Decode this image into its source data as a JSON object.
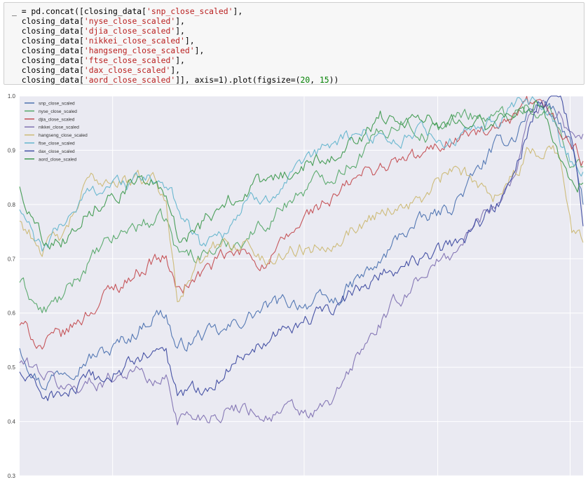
{
  "code_cell": {
    "lines": [
      [
        {
          "t": "_ = pd.concat([closing_data["
        },
        {
          "s": "'snp_close_scaled'"
        },
        {
          "t": "],"
        }
      ],
      [
        {
          "t": "  closing_data["
        },
        {
          "s": "'nyse_close_scaled'"
        },
        {
          "t": "],"
        }
      ],
      [
        {
          "t": "  closing_data["
        },
        {
          "s": "'djia_close_scaled'"
        },
        {
          "t": "],"
        }
      ],
      [
        {
          "t": "  closing_data["
        },
        {
          "s": "'nikkei_close_scaled'"
        },
        {
          "t": "],"
        }
      ],
      [
        {
          "t": "  closing_data["
        },
        {
          "s": "'hangseng_close_scaled'"
        },
        {
          "t": "],"
        }
      ],
      [
        {
          "t": "  closing_data["
        },
        {
          "s": "'ftse_close_scaled'"
        },
        {
          "t": "],"
        }
      ],
      [
        {
          "t": "  closing_data["
        },
        {
          "s": "'dax_close_scaled'"
        },
        {
          "t": "],"
        }
      ],
      [
        {
          "t": "  closing_data["
        },
        {
          "s": "'aord_close_scaled'"
        },
        {
          "t": "]], axis=1).plot(figsize=("
        },
        {
          "n": "20"
        },
        {
          "t": ", "
        },
        {
          "n": "15"
        },
        {
          "t": "))"
        }
      ]
    ]
  },
  "chart_data": {
    "type": "line",
    "title": "",
    "xlabel": "",
    "ylabel": "",
    "ylim": [
      0.3,
      1.0
    ],
    "xlim": [
      0,
      100
    ],
    "yticks": [
      0.3,
      0.4,
      0.5,
      0.6,
      0.7,
      0.8,
      0.9,
      1.0
    ],
    "ytick_labels": [
      "0.3",
      "0.4",
      "0.5",
      "0.6",
      "0.7",
      "0.8",
      "0.9",
      "1.0"
    ],
    "x_gridlines": [
      16.5,
      50.5,
      74.2,
      97.7
    ],
    "grid": true,
    "legend_position": "upper-left",
    "style": {
      "background": "#eaeaf2",
      "grid_color": "#ffffff",
      "tick_color": "#444444"
    },
    "x": [
      0,
      4,
      8,
      12,
      16,
      20,
      24,
      26,
      28,
      32,
      36,
      40,
      44,
      48,
      52,
      56,
      60,
      64,
      68,
      72,
      76,
      80,
      84,
      88,
      90,
      92,
      94,
      96,
      98,
      100
    ],
    "series": [
      {
        "name": "snp_close_scaled",
        "color": "#4c72b0",
        "values": [
          0.54,
          0.47,
          0.5,
          0.52,
          0.53,
          0.56,
          0.6,
          0.6,
          0.53,
          0.56,
          0.56,
          0.59,
          0.61,
          0.62,
          0.62,
          0.62,
          0.66,
          0.69,
          0.75,
          0.77,
          0.79,
          0.84,
          0.9,
          0.93,
          0.97,
          0.98,
          0.99,
          0.95,
          0.9,
          0.8
        ]
      },
      {
        "name": "nyse_close_scaled",
        "color": "#55a868",
        "values": [
          0.66,
          0.6,
          0.63,
          0.69,
          0.73,
          0.76,
          0.77,
          0.77,
          0.71,
          0.71,
          0.72,
          0.74,
          0.77,
          0.81,
          0.84,
          0.86,
          0.89,
          0.93,
          0.96,
          0.93,
          0.95,
          0.97,
          0.96,
          0.97,
          0.99,
          0.96,
          0.97,
          0.93,
          0.88,
          0.87
        ]
      },
      {
        "name": "djia_close_scaled",
        "color": "#c44e52",
        "values": [
          0.58,
          0.54,
          0.56,
          0.6,
          0.64,
          0.67,
          0.7,
          0.7,
          0.64,
          0.67,
          0.7,
          0.71,
          0.69,
          0.74,
          0.79,
          0.81,
          0.85,
          0.87,
          0.88,
          0.89,
          0.92,
          0.93,
          0.93,
          0.95,
          0.98,
          0.97,
          0.97,
          0.93,
          0.91,
          0.88
        ]
      },
      {
        "name": "nikkei_close_scaled",
        "color": "#8172b2",
        "values": [
          0.51,
          0.49,
          0.46,
          0.47,
          0.48,
          0.5,
          0.47,
          0.48,
          0.41,
          0.41,
          0.42,
          0.43,
          0.41,
          0.42,
          0.41,
          0.44,
          0.52,
          0.58,
          0.63,
          0.68,
          0.7,
          0.75,
          0.8,
          0.86,
          0.96,
          0.98,
          0.98,
          0.97,
          0.93,
          0.93
        ]
      },
      {
        "name": "hangseng_close_scaled",
        "color": "#ccb974",
        "values": [
          0.77,
          0.72,
          0.74,
          0.84,
          0.85,
          0.84,
          0.85,
          0.8,
          0.64,
          0.69,
          0.73,
          0.73,
          0.69,
          0.72,
          0.72,
          0.74,
          0.76,
          0.79,
          0.8,
          0.81,
          0.86,
          0.85,
          0.82,
          0.86,
          0.89,
          0.9,
          0.91,
          0.89,
          0.75,
          0.73
        ]
      },
      {
        "name": "ftse_close_scaled",
        "color": "#64b5cd",
        "values": [
          0.79,
          0.71,
          0.77,
          0.82,
          0.84,
          0.84,
          0.85,
          0.82,
          0.8,
          0.73,
          0.75,
          0.8,
          0.82,
          0.84,
          0.88,
          0.92,
          0.93,
          0.93,
          0.92,
          0.94,
          0.91,
          0.93,
          0.95,
          0.97,
          0.99,
          0.98,
          0.97,
          0.92,
          0.88,
          0.86
        ]
      },
      {
        "name": "dax_close_scaled",
        "color": "#3d4aa0",
        "values": [
          0.49,
          0.45,
          0.45,
          0.47,
          0.48,
          0.51,
          0.53,
          0.52,
          0.45,
          0.46,
          0.49,
          0.53,
          0.56,
          0.58,
          0.59,
          0.61,
          0.64,
          0.68,
          0.68,
          0.7,
          0.72,
          0.75,
          0.79,
          0.85,
          0.93,
          0.99,
          0.98,
          0.98,
          0.93,
          0.76
        ]
      },
      {
        "name": "aord_close_scaled",
        "color": "#3f9a4f",
        "values": [
          0.83,
          0.74,
          0.74,
          0.79,
          0.82,
          0.84,
          0.84,
          0.8,
          0.74,
          0.76,
          0.8,
          0.83,
          0.84,
          0.86,
          0.88,
          0.9,
          0.92,
          0.96,
          0.96,
          0.97,
          0.95,
          0.97,
          0.94,
          0.97,
          0.97,
          0.99,
          0.95,
          0.88,
          0.84,
          0.84
        ]
      }
    ]
  }
}
